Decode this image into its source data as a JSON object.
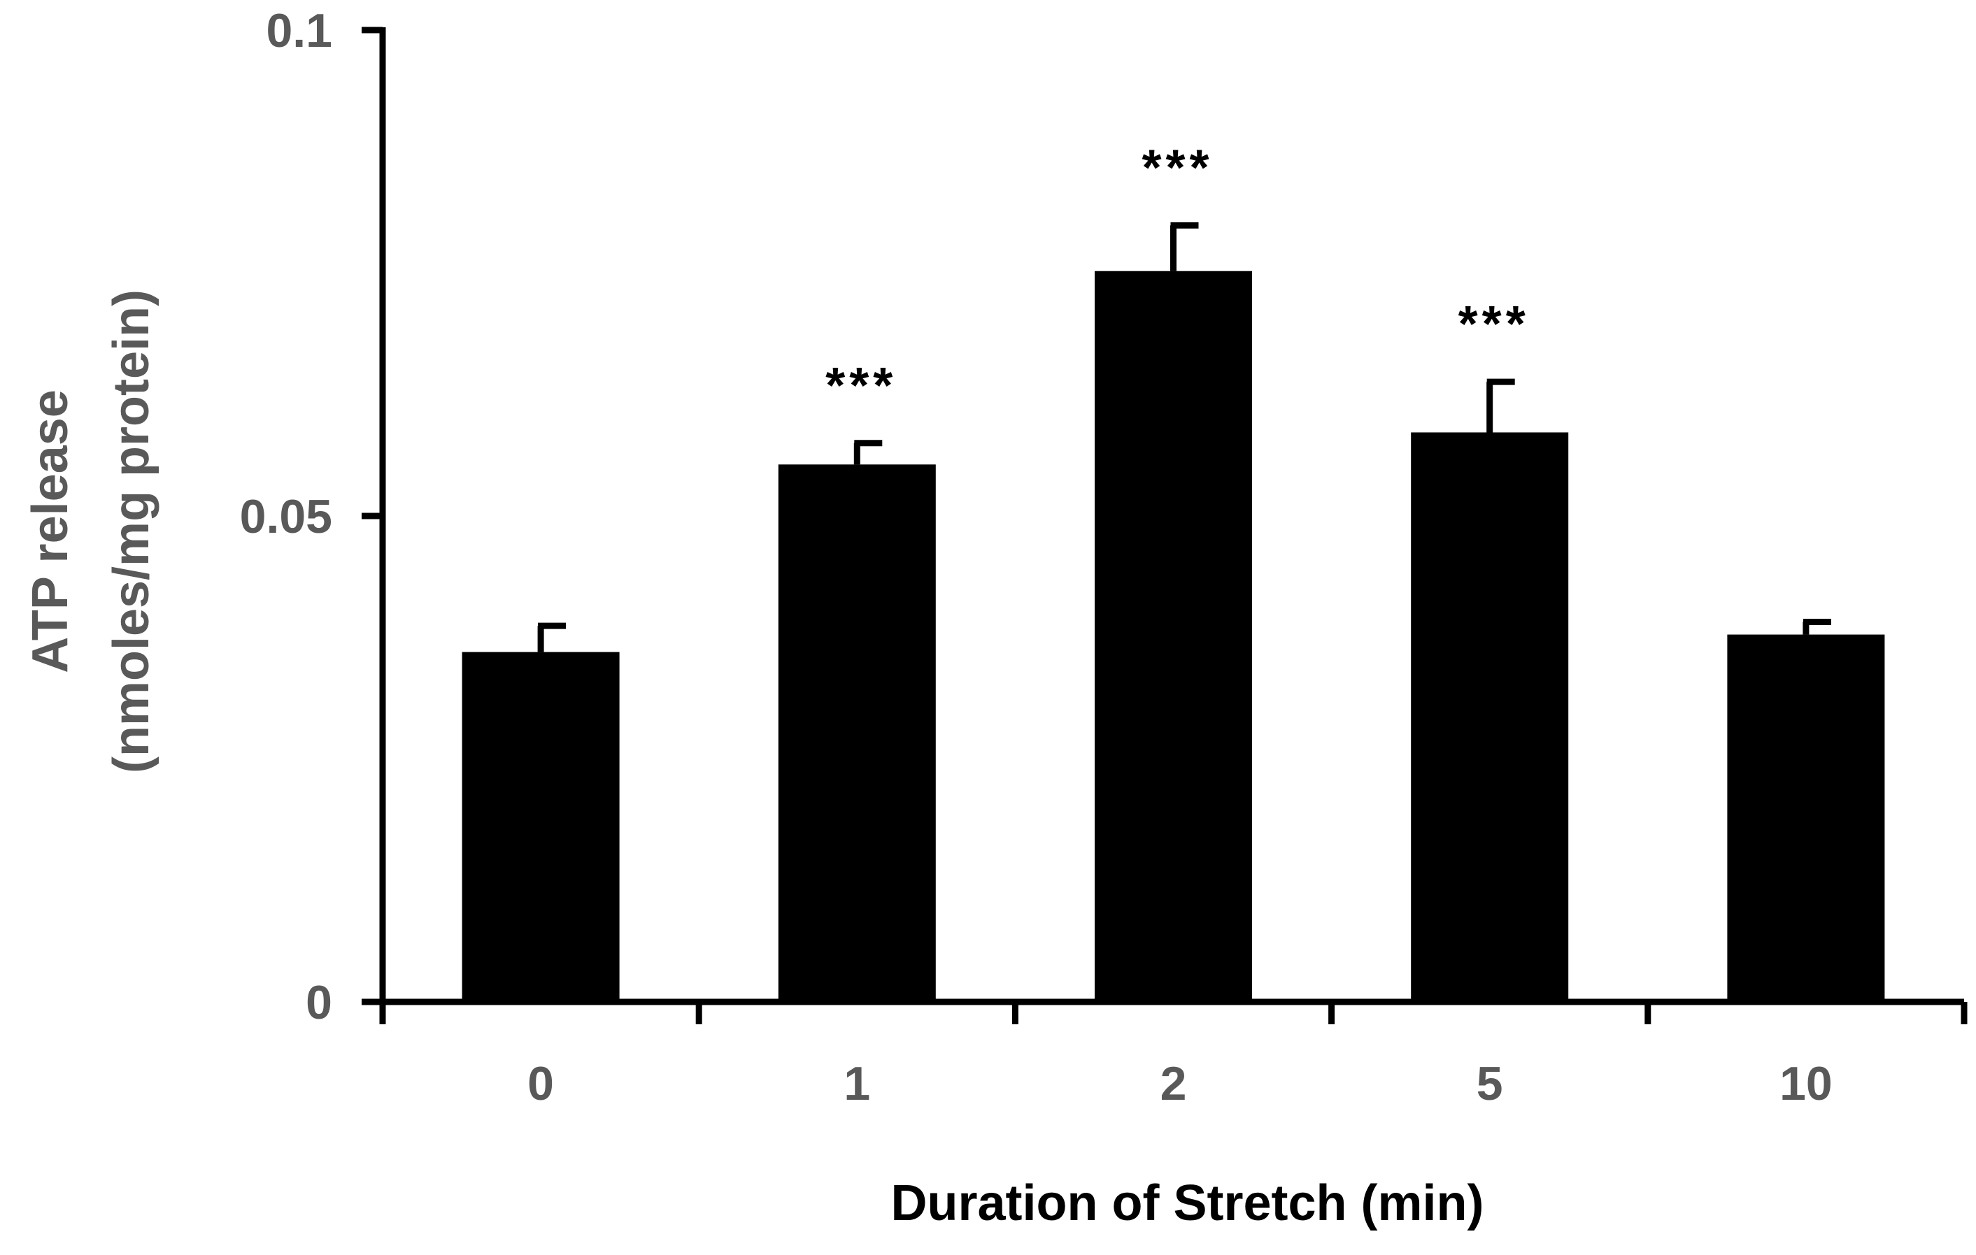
{
  "chart_data": {
    "type": "bar",
    "categories": [
      "0",
      "1",
      "2",
      "5",
      "10"
    ],
    "values": [
      0.036,
      0.0553,
      0.0752,
      0.0586,
      0.0378
    ],
    "errors": [
      0.0027,
      0.0022,
      0.0047,
      0.0052,
      0.0013
    ],
    "significance": [
      "",
      "***",
      "***",
      "***",
      ""
    ],
    "xlabel": "Duration of Stretch (min)",
    "ylabel_line1": "ATP release",
    "ylabel_line2": "(nmoles/mg protein)",
    "ylim": [
      0,
      0.1
    ],
    "yticks": [
      0,
      0.05,
      0.1
    ],
    "ytick_labels": [
      "0",
      "0.05",
      "0.1"
    ],
    "grid": false,
    "bar_color": "#000000",
    "tick_label_color": "#595959"
  }
}
